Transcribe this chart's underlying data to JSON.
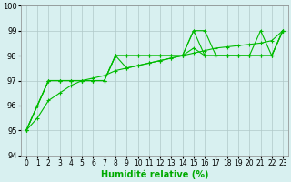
{
  "series": [
    {
      "x": [
        0,
        1,
        2,
        3,
        4,
        5,
        6,
        7,
        8,
        9,
        10,
        11,
        12,
        13,
        14,
        15,
        16,
        17,
        18,
        19,
        20,
        21,
        22,
        23
      ],
      "y": [
        95,
        96,
        97,
        97,
        97,
        97,
        97,
        97,
        98,
        98,
        98,
        98,
        98,
        98,
        98,
        99,
        99,
        98,
        98,
        98,
        98,
        99,
        98,
        99
      ]
    },
    {
      "x": [
        0,
        1,
        2,
        3,
        4,
        5,
        6,
        7,
        8,
        9,
        10,
        11,
        12,
        13,
        14,
        15,
        16,
        17,
        18,
        19,
        20,
        21,
        22,
        23
      ],
      "y": [
        95,
        96,
        97,
        97,
        97,
        97,
        97,
        97,
        98,
        98,
        98,
        98,
        98,
        98,
        98,
        99,
        98,
        98,
        98,
        98,
        98,
        98,
        98,
        99
      ]
    },
    {
      "x": [
        0,
        1,
        2,
        3,
        4,
        5,
        6,
        7,
        8,
        9,
        10,
        11,
        12,
        13,
        14,
        15,
        16,
        17,
        18,
        19,
        20,
        21,
        22,
        23
      ],
      "y": [
        95,
        95.5,
        96.2,
        96.5,
        96.8,
        97.0,
        97.1,
        97.2,
        97.4,
        97.5,
        97.6,
        97.7,
        97.8,
        97.9,
        98.0,
        98.1,
        98.2,
        98.3,
        98.35,
        98.4,
        98.45,
        98.5,
        98.6,
        99.0
      ]
    },
    {
      "x": [
        0,
        1,
        2,
        3,
        4,
        5,
        6,
        7,
        8,
        9,
        10,
        11,
        12,
        13,
        14,
        15,
        16,
        17,
        18,
        19,
        20,
        21,
        22,
        23
      ],
      "y": [
        95,
        96,
        97,
        97,
        97,
        97,
        97,
        97,
        98,
        97.5,
        97.6,
        97.7,
        97.8,
        97.9,
        98.0,
        98.3,
        98.0,
        98.0,
        98.0,
        98.0,
        98.0,
        98.0,
        98.0,
        99.0
      ]
    }
  ],
  "line_color": "#00bb00",
  "marker": "+",
  "markersize": 3,
  "linewidth": 0.8,
  "xlabel": "Humidité relative (%)",
  "xlabel_color": "#00aa00",
  "xlabel_fontsize": 7,
  "xlim": [
    -0.5,
    23.5
  ],
  "ylim": [
    94,
    100
  ],
  "yticks": [
    94,
    95,
    96,
    97,
    98,
    99,
    100
  ],
  "xticks": [
    0,
    1,
    2,
    3,
    4,
    5,
    6,
    7,
    8,
    9,
    10,
    11,
    12,
    13,
    14,
    15,
    16,
    17,
    18,
    19,
    20,
    21,
    22,
    23
  ],
  "background_color": "#d8f0f0",
  "grid_color": "#b0c8c8",
  "tick_fontsize": 5.5,
  "ytick_fontsize": 6
}
